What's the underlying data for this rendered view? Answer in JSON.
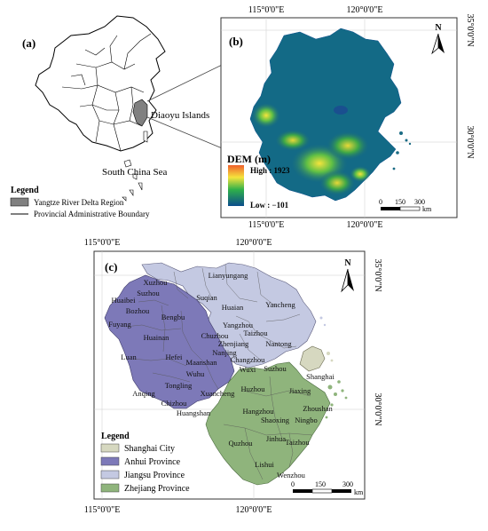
{
  "panel_a": {
    "label": "(a)",
    "callout_label": "Diaoyu Islands",
    "sea_label": "South China Sea",
    "legend": {
      "title": "Legend",
      "items": [
        {
          "label": "Yangtze River Delta Region",
          "symbol": "gray-box"
        },
        {
          "label": "Provincial Administrative Boundary",
          "symbol": "line"
        }
      ]
    }
  },
  "panel_b": {
    "label": "(b)",
    "top_ticks": [
      "115°0'0\"E",
      "120°0'0\"E"
    ],
    "bottom_ticks": [
      "115°0'0\"E",
      "120°0'0\"E"
    ],
    "right_ticks": [
      "35°0'0\"N",
      "30°0'0\"N"
    ],
    "north_label": "N",
    "dem_title": "DEM (m)",
    "dem_high": "High : 1923",
    "dem_low": "Low : −101",
    "scale_labels": [
      "0",
      "150",
      "300"
    ],
    "scale_unit": "km",
    "colors": {
      "high": "#f0602c",
      "mid_high": "#f5e43c",
      "mid": "#2fb04a",
      "low": "#0b4d8c",
      "sea": "#ffffff"
    }
  },
  "panel_c": {
    "label": "(c)",
    "top_ticks": [
      "115°0'0\"E",
      "120°0'0\"E"
    ],
    "bottom_ticks": [
      "115°0'0\"E",
      "120°0'0\"E"
    ],
    "right_ticks": [
      "35°0'0\"N",
      "30°0'0\"N"
    ],
    "north_label": "N",
    "scale_labels": [
      "0",
      "150",
      "300"
    ],
    "scale_unit": "km",
    "legend": {
      "title": "Legend",
      "items": [
        {
          "label": "Shanghai City",
          "color": "#d6d8c0"
        },
        {
          "label": "Anhui Province",
          "color": "#7d79b8"
        },
        {
          "label": "Jiangsu Province",
          "color": "#c4c9e2"
        },
        {
          "label": "Zhejiang Province",
          "color": "#8fb47c"
        }
      ]
    },
    "cities": {
      "xuzhou": "Xuzhou",
      "lianyungang": "Lianyungang",
      "suzhou_ah": "Suzhou",
      "suqian": "Suqian",
      "huaibei": "Huaibei",
      "huaian": "Huaian",
      "yancheng": "Yancheng",
      "bozhou": "Bozhou",
      "bengbu": "Bengbu",
      "fuyang": "Fuyang",
      "yangzhou": "Yangzhou",
      "taizhou_js": "Taizhou",
      "huainan": "Huainan",
      "chuzhou": "Chuzhou",
      "zhenjiang": "Zhenjiang",
      "nantong": "Nantong",
      "luan": "Luan",
      "hefei": "Hefei",
      "nanjing": "Nanjing",
      "changzhou": "Changzhou",
      "maanshan": "Maanshan",
      "wuxi": "Wuxi",
      "suzhou_js": "Suzhou",
      "wuhu": "Wuhu",
      "shanghai": "Shanghai",
      "tongling": "Tongling",
      "huzhou": "Huzhou",
      "jiaxing": "Jiaxing",
      "anqing": "Anqing",
      "xuancheng": "Xuancheng",
      "chizhou": "Chizhou",
      "zhoushan": "Zhoushan",
      "hangzhou": "Hangzhou",
      "huangshan": "Huangshan",
      "shaoxing": "Shaoxing",
      "ningbo": "Ningbo",
      "jinhua": "Jinhua",
      "quzhou": "Quzhou",
      "taizhou_zj": "Taizhou",
      "lishui": "Lishui",
      "wenzhou": "Wenzhou"
    }
  }
}
